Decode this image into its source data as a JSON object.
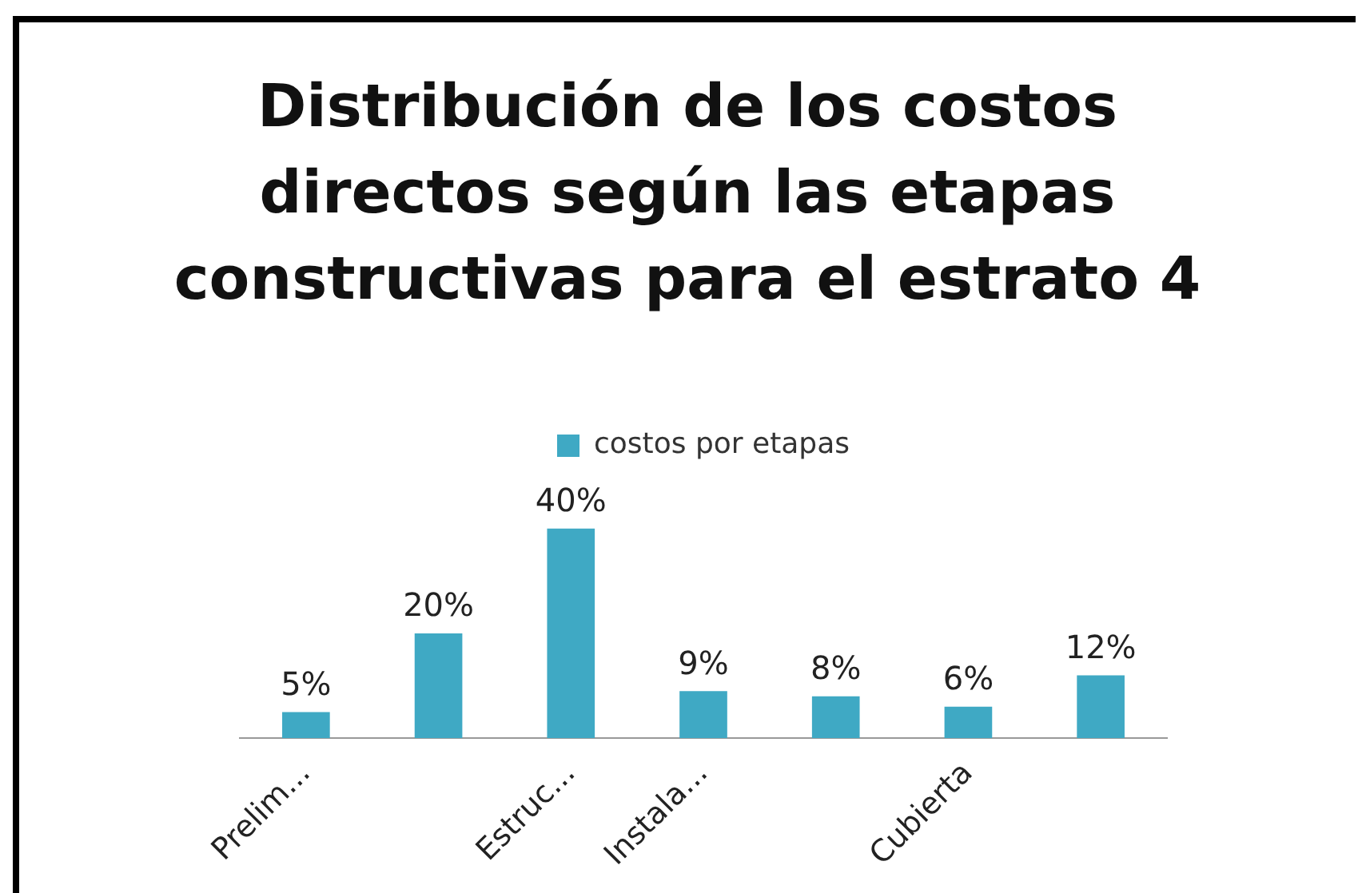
{
  "chart_data": {
    "type": "bar",
    "title": "Distribución de los costos directos según las etapas constructivas para el estrato 4",
    "categories": [
      "Prelim...",
      null,
      "Estruc...",
      "Instala...",
      null,
      "Cubierta",
      null
    ],
    "series": [
      {
        "name": "costos por etapas",
        "color": "#3fa9c4",
        "values": [
          5,
          20,
          40,
          9,
          8,
          6,
          12
        ],
        "value_labels": [
          "5%",
          "20%",
          "40%",
          "9%",
          "8%",
          "6%",
          "12%"
        ]
      }
    ],
    "legend": "top",
    "grid": false,
    "tick_labels": "x"
  }
}
